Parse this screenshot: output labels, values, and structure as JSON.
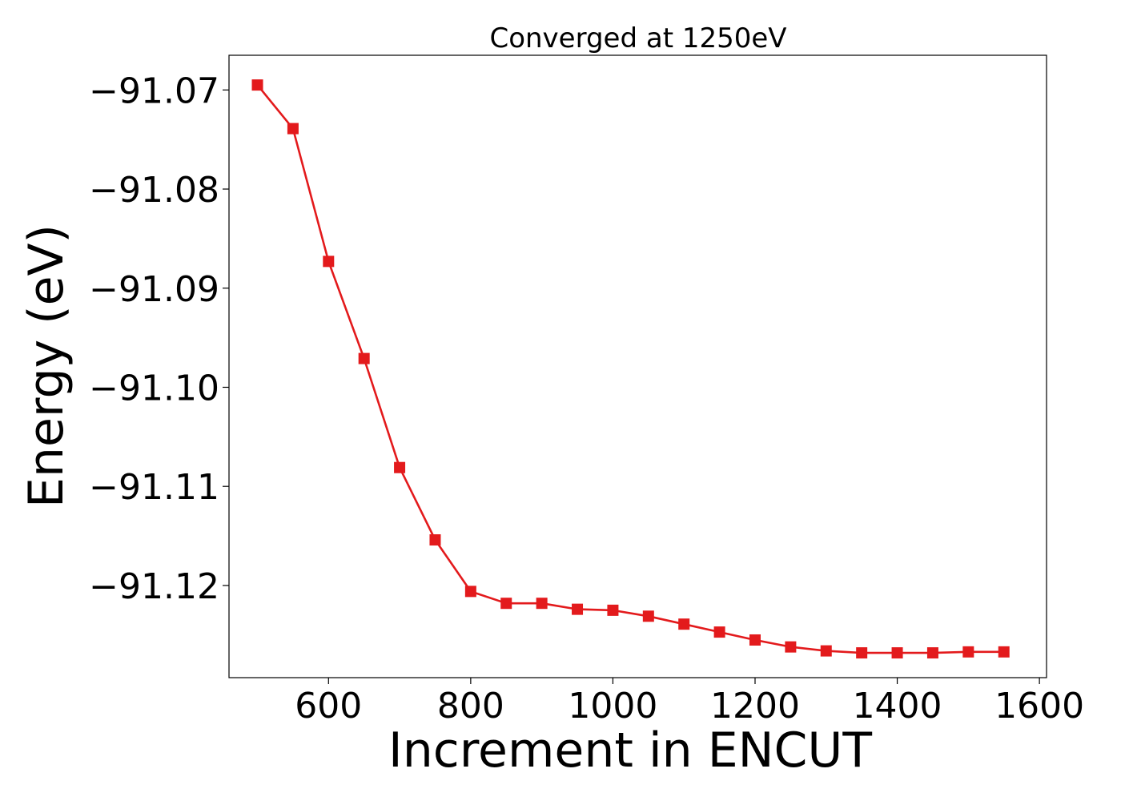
{
  "chart_data": {
    "type": "line",
    "title": "Converged at 1250eV",
    "xlabel": "Increment in ENCUT",
    "ylabel": "Energy (eV)",
    "xlim": [
      460,
      1610
    ],
    "ylim": [
      -91.1293,
      -91.0665
    ],
    "x_ticks": [
      600,
      800,
      1000,
      1200,
      1400,
      1600
    ],
    "y_ticks": [
      -91.07,
      -91.08,
      -91.09,
      -91.1,
      -91.11,
      -91.12
    ],
    "x_tick_labels": [
      "600",
      "800",
      "1000",
      "1200",
      "1400",
      "1600"
    ],
    "y_tick_labels": [
      "−91.07",
      "−91.08",
      "−91.09",
      "−91.10",
      "−91.11",
      "−91.12"
    ],
    "grid": false,
    "legend": "none",
    "series": [
      {
        "color": "#e31a1c",
        "marker": "square",
        "x": [
          500,
          550,
          600,
          650,
          700,
          750,
          800,
          850,
          900,
          950,
          1000,
          1050,
          1100,
          1150,
          1200,
          1250,
          1300,
          1350,
          1400,
          1450,
          1500,
          1550
        ],
        "y": [
          -91.0695,
          -91.0739,
          -91.0873,
          -91.0971,
          -91.1081,
          -91.1154,
          -91.1206,
          -91.1218,
          -91.1218,
          -91.1224,
          -91.1225,
          -91.1231,
          -91.1239,
          -91.1247,
          -91.1255,
          -91.1262,
          -91.1266,
          -91.1268,
          -91.1268,
          -91.1268,
          -91.1267,
          -91.1267
        ]
      }
    ]
  }
}
